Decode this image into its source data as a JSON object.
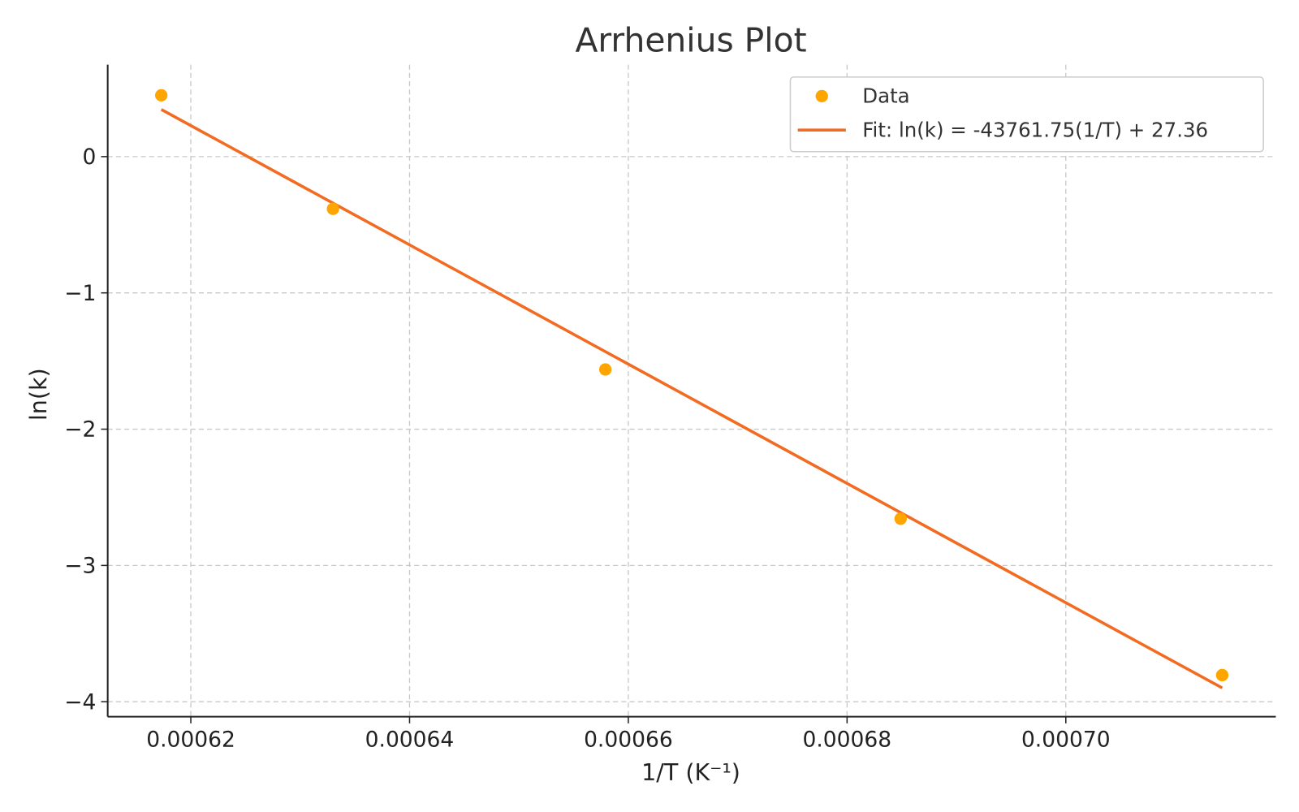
{
  "chart_data": {
    "type": "scatter",
    "title": "Arrhenius Plot",
    "xlabel": "1/T (K⁻¹)",
    "ylabel": "ln(k)",
    "xlim": [
      0.0006124,
      0.0007192
    ],
    "ylim": [
      -4.11,
      0.675
    ],
    "grid": true,
    "legend_placement": "top-right",
    "x_ticks": [
      0.00062,
      0.00064,
      0.00066,
      0.00068,
      0.0007
    ],
    "x_tick_labels": [
      "0.00062",
      "0.00064",
      "0.00066",
      "0.00068",
      "0.00070"
    ],
    "y_ticks": [
      0,
      -1,
      -2,
      -3,
      -4
    ],
    "y_tick_labels": [
      "0",
      "−1",
      "−2",
      "−3",
      "−4"
    ],
    "series": [
      {
        "name": "Data",
        "kind": "scatter",
        "color": "#FFA500",
        "x": [
          0.0006173,
          0.000633,
          0.0006579,
          0.0006849,
          0.0007143
        ],
        "y": [
          0.45,
          -0.383,
          -1.562,
          -2.657,
          -3.805
        ]
      },
      {
        "name": "Fit: ln(k) = -43761.75(1/T) + 27.36",
        "kind": "line",
        "color": "#F26B21",
        "slope": -43761.75,
        "intercept": 27.36,
        "x_range": [
          0.0006173,
          0.0007143
        ]
      }
    ]
  }
}
